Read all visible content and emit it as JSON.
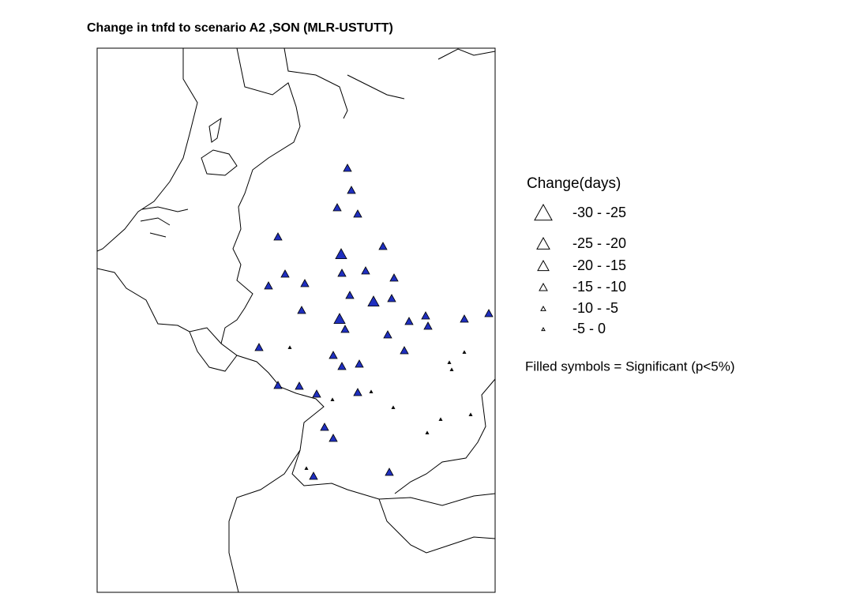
{
  "title": "Change in tnfd to scenario A2 ,SON (MLR-USTUTT)",
  "legend": {
    "title": "Change(days)",
    "items": [
      "-30 - -25",
      "-25 - -20",
      "-20 - -15",
      "-15 - -10",
      "-10 - -5",
      "-5 - 0"
    ],
    "note": "Filled symbols = Significant (p<5%)"
  }
}
